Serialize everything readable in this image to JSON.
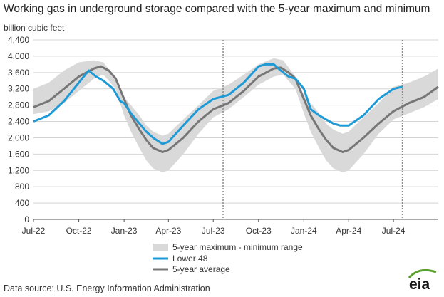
{
  "title": "Working gas in underground  storage compared with the 5-year maximum and minimum",
  "source": "Data source:  U.S. Energy Information Administration",
  "logo_text": "eia",
  "colors": {
    "lower48": "#1e9ad6",
    "average": "#777777",
    "range": "#d9d9d9",
    "logo_green": "#5aa02c"
  },
  "chart_data": {
    "type": "line",
    "title": "Working gas in underground  storage compared with the 5-year maximum and minimum",
    "ylabel": "billion cubic feet",
    "xlabel": "",
    "ylim": [
      0,
      4400
    ],
    "yticks": [
      0,
      400,
      800,
      1200,
      1600,
      2000,
      2400,
      2800,
      3200,
      3600,
      4000,
      4400
    ],
    "ytick_labels": [
      "0",
      "400",
      "800",
      "1,200",
      "1,600",
      "2,000",
      "2,400",
      "2,800",
      "3,200",
      "3,600",
      "4,000",
      "4,400"
    ],
    "xlim": [
      "2022-07-01",
      "2024-09-30"
    ],
    "xticks": [
      "2022-07-01",
      "2022-10-01",
      "2023-01-01",
      "2023-04-01",
      "2023-07-01",
      "2023-10-01",
      "2024-01-01",
      "2024-04-01",
      "2024-07-01"
    ],
    "xtick_labels": [
      "Jul-22",
      "Oct-22",
      "Jan-23",
      "Apr-23",
      "Jul-23",
      "Oct-23",
      "Jan-24",
      "Apr-24",
      "Jul-24"
    ],
    "grid": "horizontal",
    "vertical_markers": [
      "2023-07-21",
      "2024-07-19"
    ],
    "legend_position": "bottom-center",
    "legend": [
      {
        "label": "5-year maximum - minimum range",
        "kind": "band"
      },
      {
        "label": "Lower 48",
        "kind": "line-blue"
      },
      {
        "label": "5-year average",
        "kind": "line-gray"
      }
    ],
    "series": [
      {
        "name": "5-year maximum - minimum range",
        "kind": "band",
        "x": [
          "2022-07-01",
          "2022-08-01",
          "2022-09-01",
          "2022-10-01",
          "2022-11-01",
          "2022-11-20",
          "2022-12-15",
          "2023-01-01",
          "2023-01-15",
          "2023-02-01",
          "2023-02-15",
          "2023-03-01",
          "2023-03-20",
          "2023-04-01",
          "2023-05-01",
          "2023-06-01",
          "2023-07-01",
          "2023-08-01",
          "2023-09-01",
          "2023-10-01",
          "2023-11-01",
          "2023-11-20",
          "2023-12-15",
          "2024-01-01",
          "2024-01-15",
          "2024-02-01",
          "2024-02-15",
          "2024-03-01",
          "2024-03-20",
          "2024-04-01",
          "2024-05-01",
          "2024-06-01",
          "2024-07-01",
          "2024-08-01",
          "2024-09-01",
          "2024-09-30"
        ],
        "min": [
          2580,
          2650,
          2850,
          3150,
          3450,
          3550,
          3200,
          2550,
          2150,
          1750,
          1450,
          1250,
          1150,
          1200,
          1600,
          2100,
          2500,
          2700,
          3000,
          3300,
          3500,
          3550,
          3200,
          2600,
          2150,
          1750,
          1450,
          1250,
          1150,
          1200,
          1600,
          2100,
          2450,
          2600,
          2750,
          2950
        ],
        "max": [
          3200,
          3350,
          3650,
          3850,
          3900,
          3850,
          3450,
          3000,
          2800,
          2550,
          2300,
          2150,
          2050,
          2100,
          2450,
          2800,
          3150,
          3300,
          3550,
          3800,
          3950,
          3900,
          3500,
          3050,
          2850,
          2600,
          2350,
          2200,
          2100,
          2150,
          2500,
          2850,
          3250,
          3350,
          3500,
          3700
        ]
      },
      {
        "name": "Lower 48",
        "kind": "line",
        "x": [
          "2022-07-01",
          "2022-08-01",
          "2022-09-01",
          "2022-10-01",
          "2022-10-21",
          "2022-11-05",
          "2022-11-20",
          "2022-12-10",
          "2022-12-24",
          "2023-01-01",
          "2023-01-15",
          "2023-02-01",
          "2023-02-15",
          "2023-03-01",
          "2023-03-20",
          "2023-04-01",
          "2023-05-01",
          "2023-06-01",
          "2023-07-01",
          "2023-08-01",
          "2023-09-01",
          "2023-10-01",
          "2023-10-15",
          "2023-11-01",
          "2023-11-15",
          "2023-12-01",
          "2023-12-15",
          "2024-01-01",
          "2024-01-15",
          "2024-02-01",
          "2024-02-15",
          "2024-03-01",
          "2024-03-15",
          "2024-04-01",
          "2024-05-01",
          "2024-06-01",
          "2024-07-01",
          "2024-07-19"
        ],
        "values": [
          2400,
          2550,
          2900,
          3350,
          3650,
          3500,
          3400,
          3200,
          2900,
          2850,
          2600,
          2350,
          2150,
          2000,
          1850,
          1900,
          2300,
          2700,
          2950,
          3050,
          3350,
          3750,
          3800,
          3800,
          3650,
          3500,
          3450,
          3200,
          2700,
          2550,
          2450,
          2350,
          2300,
          2300,
          2550,
          2950,
          3200,
          3250
        ]
      },
      {
        "name": "5-year average",
        "kind": "line",
        "x": [
          "2022-07-01",
          "2022-08-01",
          "2022-09-01",
          "2022-10-01",
          "2022-11-01",
          "2022-11-15",
          "2022-12-01",
          "2022-12-15",
          "2023-01-01",
          "2023-01-15",
          "2023-02-01",
          "2023-02-15",
          "2023-03-01",
          "2023-03-20",
          "2023-04-01",
          "2023-05-01",
          "2023-06-01",
          "2023-07-01",
          "2023-08-01",
          "2023-09-01",
          "2023-10-01",
          "2023-11-01",
          "2023-11-15",
          "2023-12-01",
          "2023-12-15",
          "2024-01-01",
          "2024-01-15",
          "2024-02-01",
          "2024-02-15",
          "2024-03-01",
          "2024-03-20",
          "2024-04-01",
          "2024-05-01",
          "2024-06-01",
          "2024-07-01",
          "2024-08-01",
          "2024-09-01",
          "2024-09-30"
        ],
        "values": [
          2750,
          2900,
          3200,
          3500,
          3700,
          3750,
          3650,
          3450,
          2950,
          2550,
          2200,
          1950,
          1750,
          1650,
          1700,
          2000,
          2400,
          2700,
          2850,
          3150,
          3500,
          3700,
          3720,
          3600,
          3450,
          2950,
          2550,
          2200,
          1950,
          1750,
          1650,
          1700,
          2000,
          2350,
          2650,
          2850,
          3000,
          3250
        ]
      }
    ]
  }
}
